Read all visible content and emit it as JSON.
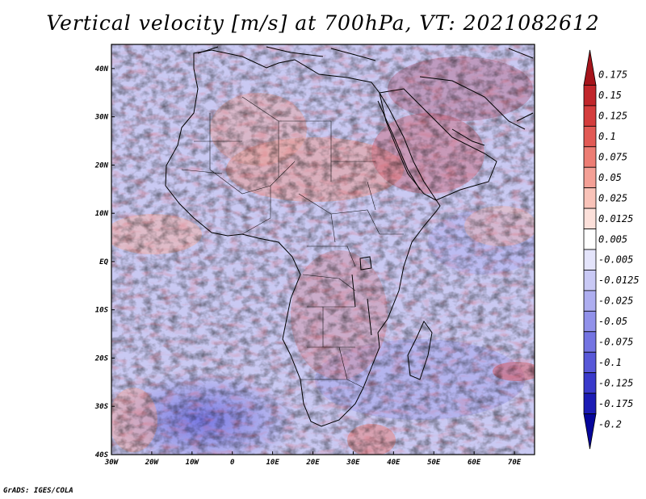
{
  "title": "Vertical velocity [m/s] at 700hPa, VT: 2021082612",
  "credit": "GrADS: IGES/COLA",
  "map": {
    "variable": "Vertical velocity",
    "units": "m/s",
    "level": "700hPa",
    "valid_time": "2021082612",
    "lon_range": [
      -30,
      75
    ],
    "lat_range": [
      -40,
      45
    ],
    "lat_ticks": [
      "40N",
      "30N",
      "20N",
      "10N",
      "EQ",
      "10S",
      "20S",
      "30S",
      "40S"
    ],
    "lon_ticks": [
      "30W",
      "20W",
      "10W",
      "0",
      "10E",
      "20E",
      "30E",
      "40E",
      "50E",
      "60E",
      "70E"
    ]
  },
  "colorbar": {
    "labels": [
      "0.175",
      "0.15",
      "0.125",
      "0.1",
      "0.075",
      "0.05",
      "0.025",
      "0.0125",
      "0.005",
      "-0.005",
      "-0.0125",
      "-0.025",
      "-0.05",
      "-0.075",
      "-0.1",
      "-0.125",
      "-0.175",
      "-0.2"
    ],
    "colors": [
      "#a5141b",
      "#c1262b",
      "#d43d3d",
      "#e25a55",
      "#ed7d74",
      "#f4a096",
      "#f9c3b9",
      "#fce0da",
      "#ffffff",
      "#e4e4fb",
      "#c9c9f5",
      "#aeaef0",
      "#9191ea",
      "#7474e2",
      "#5858d8",
      "#3a3acb",
      "#1c1cb5",
      "#06069a"
    ]
  }
}
